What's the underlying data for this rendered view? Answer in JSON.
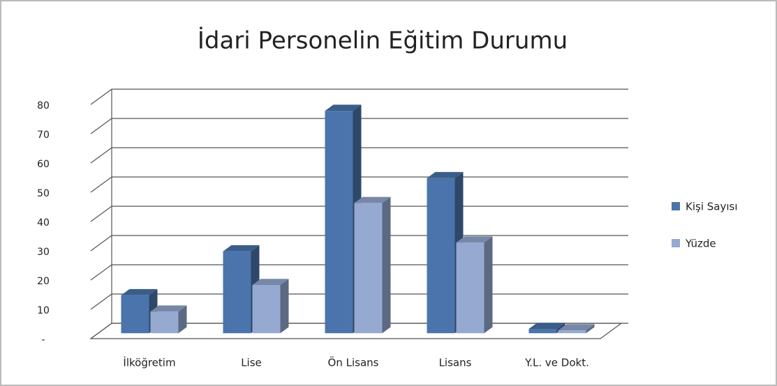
{
  "chart_data": {
    "type": "bar3d",
    "title": "İdari Personelin Eğitim Durumu",
    "categories": [
      "İlköğretim",
      "Lise",
      "Ön Lisans",
      "Lisans",
      "Y.L. ve Dokt."
    ],
    "series": [
      {
        "name": "Kişi Sayısı",
        "color": "#4a74ab",
        "values": [
          13,
          28,
          76,
          53,
          1.5
        ]
      },
      {
        "name": "Yüzde",
        "color": "#95a9d1",
        "values": [
          7.4,
          16.5,
          44.5,
          31,
          1
        ]
      }
    ],
    "ylim": [
      0,
      80
    ],
    "yticks": [
      {
        "value": 0,
        "label": "-"
      },
      10,
      20,
      30,
      40,
      50,
      60,
      70,
      80
    ],
    "grid": true,
    "legend": "right"
  }
}
